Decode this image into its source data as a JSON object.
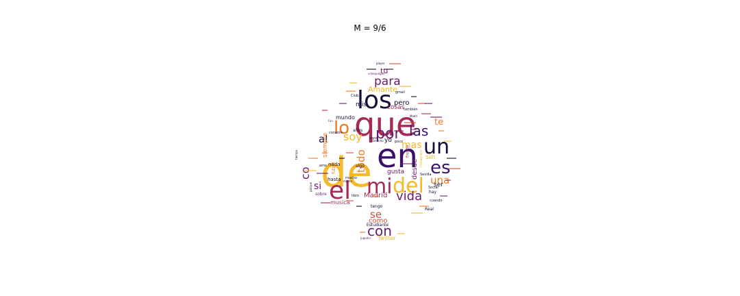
{
  "title": "M = 9/6",
  "chart_data": {
    "type": "wordcloud",
    "title": "M = 9/6",
    "shape": "spade",
    "colormap": "inferno",
    "words": [
      {
        "text": "de",
        "color": "#f6b92a"
      },
      {
        "text": "en",
        "color": "#3a0f6b"
      },
      {
        "text": "que",
        "color": "#a52a55"
      },
      {
        "text": "los",
        "color": "#160b35"
      },
      {
        "text": "el",
        "color": "#a52a55"
      },
      {
        "text": "mi",
        "color": "#a52a55"
      },
      {
        "text": "del",
        "color": "#f6b92a"
      },
      {
        "text": "un",
        "color": "#160b35"
      },
      {
        "text": "lo",
        "color": "#ef7a26"
      },
      {
        "text": "por",
        "color": "#6a1b6f"
      },
      {
        "text": "es",
        "color": "#3a0f6b"
      },
      {
        "text": "las",
        "color": "#3a0f6b"
      },
      {
        "text": "con",
        "color": "#6a1b6f"
      },
      {
        "text": "para",
        "color": "#6a1b6f"
      },
      {
        "text": "vida",
        "color": "#6a1b6f"
      },
      {
        "text": "soy",
        "color": "#f6b92a"
      },
      {
        "text": "todo",
        "color": "#ef7a26"
      },
      {
        "text": "una",
        "color": "#ef7a26"
      },
      {
        "text": "se",
        "color": "#d24f3b"
      },
      {
        "text": "al",
        "color": "#160b35"
      },
      {
        "text": "mas",
        "color": "#f6b92a"
      },
      {
        "text": "te",
        "color": "#ef7a26"
      },
      {
        "text": "si",
        "color": "#6a1b6f"
      },
      {
        "text": "co",
        "color": "#6a1b6f"
      },
      {
        "text": "Amante",
        "color": "#f6b92a"
      },
      {
        "text": "Madrid",
        "color": "#a52a55"
      },
      {
        "text": "como",
        "color": "#d24f3b"
      },
      {
        "text": "tu",
        "color": "#6a1b6f"
      },
      {
        "text": "cosas",
        "color": "#a52a55"
      },
      {
        "text": "pero",
        "color": "#160b35"
      },
      {
        "text": "mis",
        "color": "#160b35"
      },
      {
        "text": "sin",
        "color": "#f6b92a"
      },
      {
        "text": "ser",
        "color": "#160b35"
      },
      {
        "text": "yo",
        "color": "#160b35"
      },
      {
        "text": "desde",
        "color": "#6a1b6f"
      },
      {
        "text": "gusta",
        "color": "#6a1b6f"
      },
      {
        "text": "hasta",
        "color": "#160b35"
      },
      {
        "text": "nada",
        "color": "#160b35"
      },
      {
        "text": "mundo",
        "color": "#160b35"
      },
      {
        "text": "musica",
        "color": "#a52a55"
      },
      {
        "text": "Twitter",
        "color": "#f6b92a"
      },
      {
        "text": "Estudiante",
        "color": "#160b35"
      },
      {
        "text": "tengo",
        "color": "#160b35"
      },
      {
        "text": "sobre",
        "color": "#6a1b6f"
      },
      {
        "text": "Real",
        "color": "#160b35"
      },
      {
        "text": "hay",
        "color": "#160b35"
      },
      {
        "text": "algo",
        "color": "#160b35"
      },
      {
        "text": "cuando",
        "color": "#160b35"
      },
      {
        "text": "siempre",
        "color": "#ef7a26"
      },
      {
        "text": "años",
        "color": "#160b35"
      },
      {
        "text": "también",
        "color": "#160b35"
      },
      {
        "text": "Sevilla",
        "color": "#160b35"
      },
      {
        "text": "Social",
        "color": "#160b35"
      },
      {
        "text": "mucho",
        "color": "#160b35"
      },
      {
        "text": "Club",
        "color": "#160b35"
      },
      {
        "text": "gmail",
        "color": "#160b35"
      },
      {
        "text": "corazón",
        "color": "#160b35"
      },
      {
        "text": "videojuegos",
        "color": "#6a1b6f"
      },
      {
        "text": "player",
        "color": "#160b35"
      },
      {
        "text": "Jugador",
        "color": "#6a1b6f"
      },
      {
        "text": "amo",
        "color": "#160b35"
      },
      {
        "text": "hace",
        "color": "#160b35"
      },
      {
        "text": "poco",
        "color": "#160b35"
      },
      {
        "text": "libro",
        "color": "#160b35"
      },
      {
        "text": "porque",
        "color": "#160b35"
      },
      {
        "text": "Derecho",
        "color": "#160b35"
      },
      {
        "text": "libre",
        "color": "#ef7a26"
      },
      {
        "text": "fútbol",
        "color": "#ef7a26"
      },
      {
        "text": "España",
        "color": "#a52a55"
      },
      {
        "text": "tiempo",
        "color": "#160b35"
      },
      {
        "text": "madre",
        "color": "#160b35"
      },
      {
        "text": "Fan",
        "color": "#6a1b6f"
      },
      {
        "text": "Madri",
        "color": "#160b35"
      },
      {
        "text": "Instagram",
        "color": "#f6b92a"
      }
    ]
  }
}
